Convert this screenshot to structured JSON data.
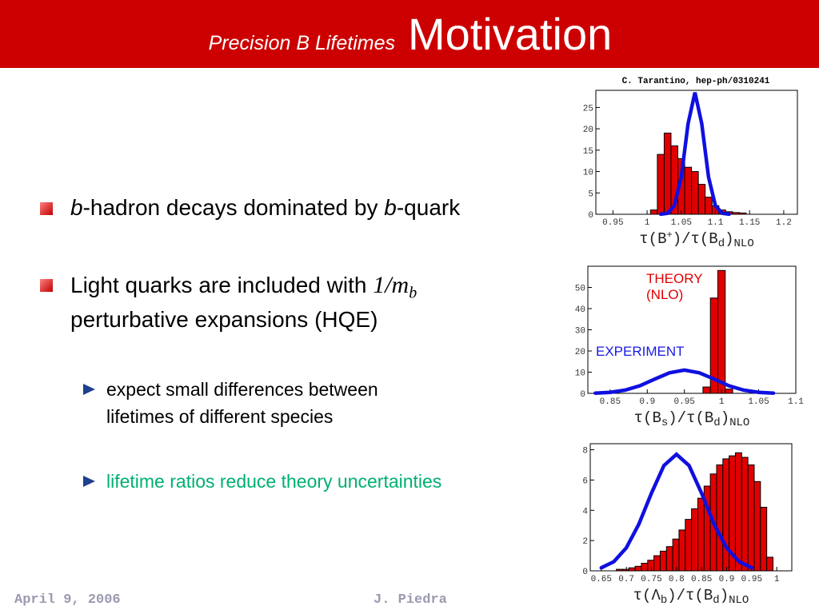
{
  "header": {
    "subtitle": "Precision B Lifetimes",
    "title": "Motivation"
  },
  "bullets": [
    {
      "parts": [
        "b",
        "-hadron decays dominated by ",
        "b",
        "-quark"
      ]
    },
    {
      "parts": [
        "Light quarks are included with ",
        "1/m",
        "b"
      ],
      "continuation": "perturbative expansions (HQE)"
    }
  ],
  "sub_bullets": [
    {
      "lines": [
        "expect small differences between",
        "lifetimes of different species"
      ]
    },
    {
      "lines": [
        "lifetime ratios reduce theory uncertainties"
      ]
    }
  ],
  "footer": {
    "date": "April 9, 2006",
    "author": "J. Piedra"
  },
  "citation": "C. Tarantino, hep-ph/0310241",
  "chart_data": [
    {
      "type": "histogram",
      "x_label": [
        "τ(B",
        "+",
        ")/τ(B",
        "d",
        ")",
        "NLO"
      ],
      "xlim": [
        0.925,
        1.22
      ],
      "xticks": [
        0.95,
        1,
        1.05,
        1.1,
        1.15,
        1.2
      ],
      "ylim": [
        0,
        29
      ],
      "yticks": [
        0,
        5,
        10,
        15,
        20,
        25
      ],
      "bins": [
        1.005,
        1.015,
        1.025,
        1.035,
        1.045,
        1.055,
        1.065,
        1.075,
        1.085,
        1.095,
        1.105,
        1.115,
        1.125,
        1.135,
        1.145
      ],
      "counts": [
        1,
        14,
        19,
        16,
        13,
        11,
        10,
        7,
        4,
        2,
        1,
        0.6,
        0.4,
        0.3
      ],
      "bar_color": "#e00000",
      "curve": {
        "x": [
          1.02,
          1.03,
          1.04,
          1.05,
          1.06,
          1.07,
          1.08,
          1.09,
          1.1,
          1.11,
          1.12
        ],
        "y": [
          0.02,
          0.25,
          2,
          8.7,
          21.2,
          28.5,
          21.2,
          8.7,
          2,
          0.25,
          0.02
        ]
      },
      "curve_color": "#1010e0"
    },
    {
      "type": "histogram",
      "x_label": [
        "τ(B",
        "s",
        ")/τ(B",
        "d",
        ")",
        "NLO"
      ],
      "xlim": [
        0.82,
        1.1
      ],
      "xticks": [
        0.85,
        0.9,
        0.95,
        1,
        1.05,
        1.1
      ],
      "ylim": [
        0,
        60
      ],
      "yticks": [
        0,
        10,
        20,
        30,
        40,
        50
      ],
      "bins": [
        0.975,
        0.985,
        0.995,
        1.005,
        1.015
      ],
      "counts": [
        3,
        45,
        58,
        2
      ],
      "bar_color": "#e00000",
      "curve": {
        "x": [
          0.83,
          0.85,
          0.87,
          0.89,
          0.91,
          0.93,
          0.95,
          0.97,
          0.99,
          1.01,
          1.03,
          1.05,
          1.07
        ],
        "y": [
          0.12,
          0.48,
          1.5,
          3.6,
          6.7,
          9.7,
          11,
          9.7,
          6.7,
          3.6,
          1.5,
          0.48,
          0.12
        ]
      },
      "curve_color": "#1010e0",
      "annotations": [
        {
          "lines": [
            "THEORY",
            "(NLO)"
          ],
          "color": "#e00000"
        },
        {
          "lines": [
            "EXPERIMENT"
          ],
          "color": "#1a1ae6"
        }
      ]
    },
    {
      "type": "histogram",
      "x_label": [
        "τ(Λ",
        "b",
        ")/τ(B",
        "d",
        ")",
        "NLO"
      ],
      "xlim": [
        0.628,
        1.03
      ],
      "xticks": [
        0.65,
        0.7,
        0.75,
        0.8,
        0.85,
        0.9,
        0.95,
        1
      ],
      "ylim": [
        0,
        8.4
      ],
      "yticks": [
        0,
        2,
        4,
        6,
        8
      ],
      "bins": [
        0.68,
        0.6925,
        0.705,
        0.7175,
        0.73,
        0.7425,
        0.755,
        0.7675,
        0.78,
        0.7925,
        0.805,
        0.8175,
        0.83,
        0.8425,
        0.855,
        0.8675,
        0.88,
        0.8925,
        0.905,
        0.9175,
        0.93,
        0.9425,
        0.955,
        0.9675,
        0.98,
        0.9925
      ],
      "counts": [
        0.1,
        0.1,
        0.2,
        0.3,
        0.5,
        0.7,
        1.0,
        1.3,
        1.6,
        2.1,
        2.7,
        3.4,
        4.1,
        4.8,
        5.6,
        6.4,
        7.0,
        7.4,
        7.6,
        7.8,
        7.5,
        7.0,
        5.9,
        4.2,
        0.9
      ],
      "bar_color": "#e00000",
      "curve": {
        "x": [
          0.65,
          0.675,
          0.7,
          0.725,
          0.75,
          0.775,
          0.8,
          0.825,
          0.85,
          0.875,
          0.9,
          0.925,
          0.95
        ],
        "y": [
          0.2,
          0.61,
          1.52,
          3.09,
          5.13,
          6.96,
          7.7,
          6.96,
          5.13,
          3.09,
          1.52,
          0.61,
          0.2
        ]
      },
      "curve_color": "#1010e0"
    }
  ]
}
